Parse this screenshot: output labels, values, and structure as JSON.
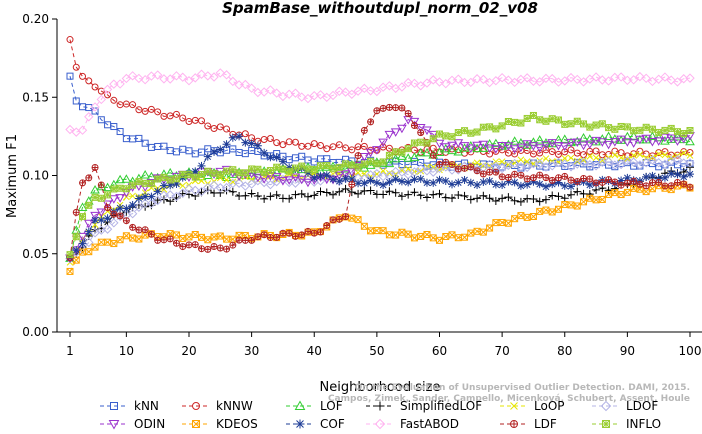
{
  "chart_data": {
    "type": "line",
    "title": "SpamBase_withoutdupl_norm_02_v08",
    "xlabel": "Neighborhood size",
    "ylabel": "Maximum F1",
    "xlim": [
      1,
      100
    ],
    "ylim": [
      0,
      0.2
    ],
    "x_ticks": [
      1,
      10,
      20,
      30,
      40,
      50,
      60,
      70,
      80,
      90,
      100
    ],
    "y_ticks": [
      0.0,
      0.05,
      0.1,
      0.15,
      0.2
    ],
    "y_tick_labels": [
      "0.00",
      "0.05",
      "0.10",
      "0.15",
      "0.20"
    ],
    "legend_position": "bottom",
    "watermark": "Campos, Zimek, Sander, Campello, Micenková, Schubert, Assent, Houle",
    "watermark_line1": "On the Evaluation of Unsupervised Outlier Detection. DAMI, 2015.",
    "series": [
      {
        "name": "kNN",
        "color": "#3a5fcd",
        "marker": "square",
        "points": [
          [
            1,
            0.162
          ],
          [
            2,
            0.148
          ],
          [
            5,
            0.14
          ],
          [
            8,
            0.13
          ],
          [
            10,
            0.125
          ],
          [
            15,
            0.118
          ],
          [
            20,
            0.115
          ],
          [
            25,
            0.116
          ],
          [
            30,
            0.115
          ],
          [
            35,
            0.112
          ],
          [
            40,
            0.11
          ],
          [
            45,
            0.109
          ],
          [
            50,
            0.108
          ],
          [
            55,
            0.108
          ],
          [
            60,
            0.107
          ],
          [
            70,
            0.106
          ],
          [
            80,
            0.107
          ],
          [
            90,
            0.107
          ],
          [
            100,
            0.107
          ]
        ]
      },
      {
        "name": "kNNW",
        "color": "#cd2626",
        "marker": "circle",
        "points": [
          [
            1,
            0.188
          ],
          [
            2,
            0.17
          ],
          [
            3,
            0.162
          ],
          [
            5,
            0.158
          ],
          [
            7,
            0.15
          ],
          [
            10,
            0.145
          ],
          [
            15,
            0.14
          ],
          [
            20,
            0.136
          ],
          [
            25,
            0.13
          ],
          [
            30,
            0.124
          ],
          [
            35,
            0.121
          ],
          [
            40,
            0.119
          ],
          [
            45,
            0.118
          ],
          [
            50,
            0.117
          ],
          [
            60,
            0.116
          ],
          [
            70,
            0.115
          ],
          [
            80,
            0.115
          ],
          [
            90,
            0.114
          ],
          [
            100,
            0.114
          ]
        ]
      },
      {
        "name": "LOF",
        "color": "#32cd32",
        "marker": "triangle-up",
        "points": [
          [
            1,
            0.047
          ],
          [
            3,
            0.08
          ],
          [
            5,
            0.09
          ],
          [
            8,
            0.095
          ],
          [
            10,
            0.097
          ],
          [
            15,
            0.1
          ],
          [
            20,
            0.101
          ],
          [
            25,
            0.1
          ],
          [
            30,
            0.101
          ],
          [
            35,
            0.103
          ],
          [
            40,
            0.104
          ],
          [
            45,
            0.105
          ],
          [
            50,
            0.107
          ],
          [
            55,
            0.112
          ],
          [
            60,
            0.115
          ],
          [
            70,
            0.12
          ],
          [
            80,
            0.122
          ],
          [
            90,
            0.124
          ],
          [
            100,
            0.123
          ]
        ]
      },
      {
        "name": "SimplifiedLOF",
        "color": "#000000",
        "marker": "plus",
        "points": [
          [
            1,
            0.047
          ],
          [
            3,
            0.055
          ],
          [
            5,
            0.065
          ],
          [
            8,
            0.073
          ],
          [
            10,
            0.078
          ],
          [
            15,
            0.083
          ],
          [
            20,
            0.088
          ],
          [
            25,
            0.09
          ],
          [
            30,
            0.087
          ],
          [
            35,
            0.086
          ],
          [
            40,
            0.088
          ],
          [
            45,
            0.09
          ],
          [
            50,
            0.089
          ],
          [
            55,
            0.088
          ],
          [
            60,
            0.087
          ],
          [
            65,
            0.086
          ],
          [
            70,
            0.085
          ],
          [
            75,
            0.084
          ],
          [
            80,
            0.087
          ],
          [
            85,
            0.09
          ],
          [
            90,
            0.094
          ],
          [
            95,
            0.1
          ],
          [
            100,
            0.104
          ]
        ]
      },
      {
        "name": "LoOP",
        "color": "#e6e600",
        "marker": "cross",
        "points": [
          [
            1,
            0.046
          ],
          [
            5,
            0.07
          ],
          [
            10,
            0.085
          ],
          [
            15,
            0.092
          ],
          [
            20,
            0.095
          ],
          [
            25,
            0.097
          ],
          [
            30,
            0.098
          ],
          [
            35,
            0.099
          ],
          [
            40,
            0.1
          ],
          [
            45,
            0.1
          ],
          [
            50,
            0.101
          ],
          [
            55,
            0.103
          ],
          [
            60,
            0.105
          ],
          [
            70,
            0.108
          ],
          [
            80,
            0.11
          ],
          [
            90,
            0.112
          ],
          [
            100,
            0.113
          ]
        ]
      },
      {
        "name": "LDOF",
        "color": "#b4b4e6",
        "marker": "diamond",
        "points": [
          [
            1,
            0.046
          ],
          [
            5,
            0.062
          ],
          [
            10,
            0.075
          ],
          [
            15,
            0.085
          ],
          [
            20,
            0.09
          ],
          [
            25,
            0.093
          ],
          [
            30,
            0.095
          ],
          [
            35,
            0.096
          ],
          [
            40,
            0.097
          ],
          [
            45,
            0.098
          ],
          [
            50,
            0.1
          ],
          [
            55,
            0.102
          ],
          [
            60,
            0.104
          ],
          [
            70,
            0.106
          ],
          [
            80,
            0.107
          ],
          [
            90,
            0.108
          ],
          [
            100,
            0.109
          ]
        ]
      },
      {
        "name": "ODIN",
        "color": "#9a32cd",
        "marker": "triangle-down",
        "points": [
          [
            1,
            0.047
          ],
          [
            5,
            0.075
          ],
          [
            10,
            0.09
          ],
          [
            15,
            0.097
          ],
          [
            20,
            0.1
          ],
          [
            25,
            0.103
          ],
          [
            30,
            0.1
          ],
          [
            35,
            0.098
          ],
          [
            40,
            0.097
          ],
          [
            45,
            0.1
          ],
          [
            50,
            0.118
          ],
          [
            55,
            0.135
          ],
          [
            58,
            0.13
          ],
          [
            60,
            0.12
          ],
          [
            70,
            0.118
          ],
          [
            80,
            0.12
          ],
          [
            90,
            0.122
          ],
          [
            100,
            0.124
          ]
        ]
      },
      {
        "name": "KDEOS",
        "color": "#ffa500",
        "marker": "square-x",
        "points": [
          [
            1,
            0.04
          ],
          [
            3,
            0.05
          ],
          [
            5,
            0.055
          ],
          [
            8,
            0.058
          ],
          [
            10,
            0.06
          ],
          [
            15,
            0.062
          ],
          [
            20,
            0.061
          ],
          [
            25,
            0.06
          ],
          [
            30,
            0.061
          ],
          [
            35,
            0.062
          ],
          [
            40,
            0.063
          ],
          [
            45,
            0.075
          ],
          [
            48,
            0.068
          ],
          [
            50,
            0.064
          ],
          [
            55,
            0.062
          ],
          [
            60,
            0.06
          ],
          [
            65,
            0.062
          ],
          [
            70,
            0.07
          ],
          [
            75,
            0.075
          ],
          [
            80,
            0.08
          ],
          [
            85,
            0.085
          ],
          [
            90,
            0.09
          ],
          [
            95,
            0.092
          ],
          [
            100,
            0.093
          ]
        ]
      },
      {
        "name": "COF",
        "color": "#1e3c96",
        "marker": "asterisk",
        "points": [
          [
            1,
            0.046
          ],
          [
            5,
            0.07
          ],
          [
            10,
            0.08
          ],
          [
            15,
            0.09
          ],
          [
            20,
            0.1
          ],
          [
            25,
            0.118
          ],
          [
            28,
            0.125
          ],
          [
            30,
            0.12
          ],
          [
            35,
            0.108
          ],
          [
            40,
            0.1
          ],
          [
            45,
            0.097
          ],
          [
            50,
            0.095
          ],
          [
            55,
            0.097
          ],
          [
            60,
            0.096
          ],
          [
            70,
            0.095
          ],
          [
            80,
            0.094
          ],
          [
            90,
            0.097
          ],
          [
            100,
            0.101
          ]
        ]
      },
      {
        "name": "FastABOD",
        "color": "#ffb3f0",
        "marker": "diamond",
        "points": [
          [
            1,
            0.13
          ],
          [
            3,
            0.128
          ],
          [
            5,
            0.145
          ],
          [
            8,
            0.158
          ],
          [
            10,
            0.162
          ],
          [
            15,
            0.163
          ],
          [
            20,
            0.162
          ],
          [
            25,
            0.165
          ],
          [
            30,
            0.155
          ],
          [
            35,
            0.152
          ],
          [
            40,
            0.15
          ],
          [
            45,
            0.153
          ],
          [
            50,
            0.155
          ],
          [
            55,
            0.158
          ],
          [
            60,
            0.16
          ],
          [
            70,
            0.161
          ],
          [
            80,
            0.161
          ],
          [
            90,
            0.162
          ],
          [
            100,
            0.161
          ]
        ]
      },
      {
        "name": "LDF",
        "color": "#b22222",
        "marker": "circle-plus",
        "points": [
          [
            1,
            0.048
          ],
          [
            2,
            0.075
          ],
          [
            3,
            0.095
          ],
          [
            5,
            0.105
          ],
          [
            7,
            0.08
          ],
          [
            10,
            0.07
          ],
          [
            15,
            0.06
          ],
          [
            20,
            0.055
          ],
          [
            25,
            0.053
          ],
          [
            30,
            0.06
          ],
          [
            35,
            0.062
          ],
          [
            40,
            0.063
          ],
          [
            45,
            0.075
          ],
          [
            48,
            0.13
          ],
          [
            50,
            0.14
          ],
          [
            52,
            0.145
          ],
          [
            55,
            0.14
          ],
          [
            58,
            0.12
          ],
          [
            60,
            0.108
          ],
          [
            70,
            0.1
          ],
          [
            80,
            0.098
          ],
          [
            90,
            0.095
          ],
          [
            100,
            0.094
          ]
        ]
      },
      {
        "name": "INFLO",
        "color": "#9acd32",
        "marker": "star-square",
        "points": [
          [
            1,
            0.048
          ],
          [
            3,
            0.075
          ],
          [
            5,
            0.085
          ],
          [
            8,
            0.09
          ],
          [
            10,
            0.093
          ],
          [
            15,
            0.097
          ],
          [
            20,
            0.1
          ],
          [
            25,
            0.102
          ],
          [
            30,
            0.103
          ],
          [
            35,
            0.104
          ],
          [
            40,
            0.105
          ],
          [
            45,
            0.106
          ],
          [
            50,
            0.108
          ],
          [
            55,
            0.118
          ],
          [
            60,
            0.125
          ],
          [
            65,
            0.128
          ],
          [
            70,
            0.132
          ],
          [
            75,
            0.137
          ],
          [
            80,
            0.134
          ],
          [
            90,
            0.13
          ],
          [
            100,
            0.128
          ]
        ]
      }
    ]
  }
}
